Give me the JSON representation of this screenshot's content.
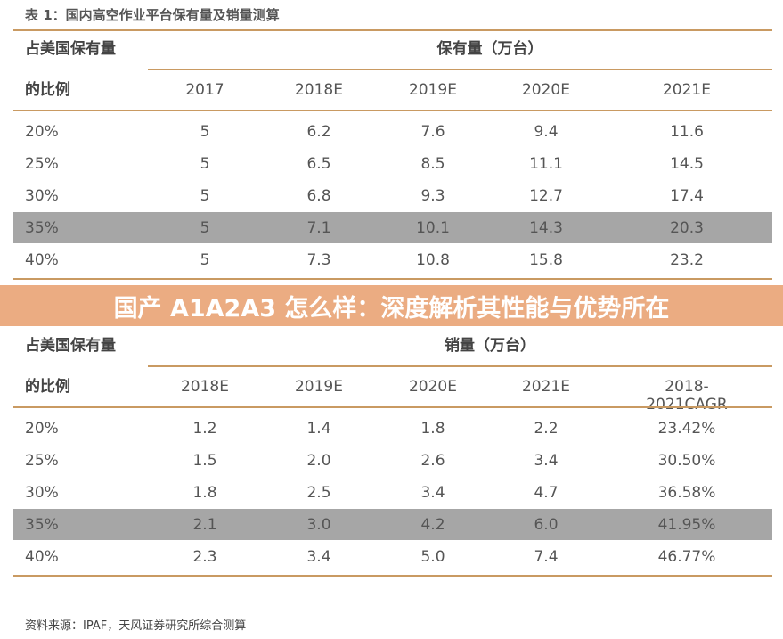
{
  "title": "表 1：国内高空作业平台保有量及销量测算",
  "table1": {
    "row_header_line1": "占美国保有量",
    "row_header_line2": "的比例",
    "group_header": "保有量（万台）",
    "columns": [
      "2017",
      "2018E",
      "2019E",
      "2020E",
      "2021E"
    ],
    "rows": [
      {
        "label": "20%",
        "values": [
          "5",
          "6.2",
          "7.6",
          "9.4",
          "11.6"
        ]
      },
      {
        "label": "25%",
        "values": [
          "5",
          "6.5",
          "8.5",
          "11.1",
          "14.5"
        ]
      },
      {
        "label": "30%",
        "values": [
          "5",
          "6.8",
          "9.3",
          "12.7",
          "17.4"
        ]
      },
      {
        "label": "35%",
        "values": [
          "5",
          "7.1",
          "10.1",
          "14.3",
          "20.3"
        ],
        "highlighted": true
      },
      {
        "label": "40%",
        "values": [
          "5",
          "7.3",
          "10.8",
          "15.8",
          "23.2"
        ]
      }
    ]
  },
  "table2": {
    "row_header_line1": "占美国保有量",
    "row_header_line2": "的比例",
    "group_header": "销量（万台）",
    "columns": [
      "2018E",
      "2019E",
      "2020E",
      "2021E",
      "2018-2021CAGR"
    ],
    "rows": [
      {
        "label": "20%",
        "values": [
          "1.2",
          "1.4",
          "1.8",
          "2.2",
          "23.42%"
        ]
      },
      {
        "label": "25%",
        "values": [
          "1.5",
          "2.0",
          "2.6",
          "3.4",
          "30.50%"
        ]
      },
      {
        "label": "30%",
        "values": [
          "1.8",
          "2.5",
          "3.4",
          "4.7",
          "36.58%"
        ]
      },
      {
        "label": "35%",
        "values": [
          "2.1",
          "3.0",
          "4.2",
          "6.0",
          "41.95%"
        ],
        "highlighted": true
      },
      {
        "label": "40%",
        "values": [
          "2.3",
          "3.4",
          "5.0",
          "7.4",
          "46.77%"
        ]
      }
    ]
  },
  "banner": "国产 A1A2A3 怎么样：深度解析其性能与优势所在",
  "source": "资料来源：IPAF，天风证券研究所综合测算",
  "colors": {
    "rule": "#c99a62",
    "highlight": "#a6a6a6",
    "banner": "#e8a071"
  }
}
